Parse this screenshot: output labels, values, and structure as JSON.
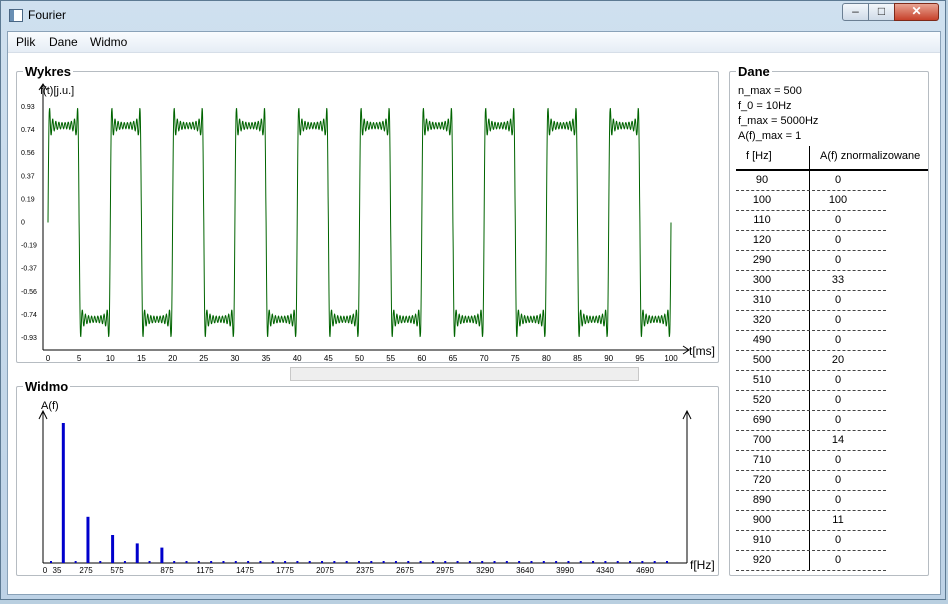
{
  "window": {
    "title": "Fourier"
  },
  "menu": [
    "Plik",
    "Dane",
    "Widmo"
  ],
  "wykres": {
    "title": "Wykres",
    "ylabel": "f(t)[j.u.]",
    "xlabel": "t[ms]",
    "yticks": [
      "0.93",
      "0.74",
      "0.56",
      "0.37",
      "0.19",
      "0",
      "-0.19",
      "-0.37",
      "-0.56",
      "-0.74",
      "-0.93"
    ],
    "xticks": [
      "0",
      "5",
      "10",
      "15",
      "20",
      "25",
      "30",
      "35",
      "40",
      "45",
      "50",
      "55",
      "60",
      "65",
      "70",
      "75",
      "80",
      "85",
      "90",
      "95",
      "100"
    ],
    "line_color": "#006400"
  },
  "widmo": {
    "title": "Widmo",
    "ylabel": "A(f)",
    "xlabel": "f[Hz]",
    "xticks": [
      "0",
      "35",
      "275",
      "575",
      "875",
      "1175",
      "1475",
      "1775",
      "2075",
      "2375",
      "2675",
      "2975",
      "3290",
      "3640",
      "3990",
      "4340",
      "4690"
    ],
    "bar_color": "#0000cc"
  },
  "dane": {
    "title": "Dane",
    "params": [
      "n_max = 500",
      "f_0 = 10Hz",
      "f_max = 5000Hz",
      "A(f)_max = 1"
    ],
    "columns": [
      "f [Hz]",
      "A(f) znormalizowane"
    ],
    "rows": [
      {
        "f": "90",
        "a": "0"
      },
      {
        "f": "100",
        "a": "100"
      },
      {
        "f": "110",
        "a": "0"
      },
      {
        "f": "120",
        "a": "0"
      },
      {
        "f": "290",
        "a": "0"
      },
      {
        "f": "300",
        "a": "33"
      },
      {
        "f": "310",
        "a": "0"
      },
      {
        "f": "320",
        "a": "0"
      },
      {
        "f": "490",
        "a": "0"
      },
      {
        "f": "500",
        "a": "20"
      },
      {
        "f": "510",
        "a": "0"
      },
      {
        "f": "520",
        "a": "0"
      },
      {
        "f": "690",
        "a": "0"
      },
      {
        "f": "700",
        "a": "14"
      },
      {
        "f": "710",
        "a": "0"
      },
      {
        "f": "720",
        "a": "0"
      },
      {
        "f": "890",
        "a": "0"
      },
      {
        "f": "900",
        "a": "11"
      },
      {
        "f": "910",
        "a": "0"
      },
      {
        "f": "920",
        "a": "0"
      }
    ]
  },
  "chart_data": [
    {
      "type": "line",
      "title": "Wykres",
      "ylabel": "f(t)[j.u.]",
      "xlabel": "t[ms]",
      "xlim": [
        0,
        100
      ],
      "ylim": [
        -0.93,
        0.93
      ],
      "series": [
        {
          "f0_hz": 100,
          "harmonics": [
            1,
            3,
            5,
            7,
            9,
            11,
            13,
            15,
            17,
            19
          ],
          "amplitude": 0.78
        }
      ]
    },
    {
      "type": "bar",
      "title": "Widmo",
      "ylabel": "A(f)",
      "xlabel": "f[Hz]",
      "xlim": [
        0,
        5000
      ],
      "x": [
        100,
        300,
        500,
        700,
        900
      ],
      "values": [
        100,
        33,
        20,
        14,
        11
      ],
      "baseline_step_hz": 100
    }
  ]
}
